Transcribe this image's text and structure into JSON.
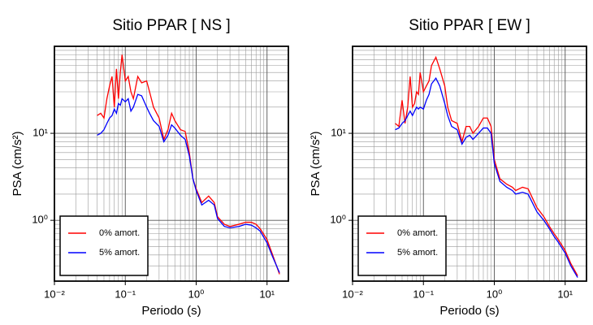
{
  "chart_data": [
    {
      "type": "line",
      "title": "Sitio PPAR [ NS ]",
      "x_label": "Periodo (s)",
      "y_label": "PSA (cm/s²)",
      "log_x": true,
      "log_y": true,
      "grid": true,
      "legend": "lower left",
      "xlim": [
        0.01,
        20
      ],
      "ylim": [
        0.2,
        100
      ],
      "xticks": [
        {
          "value": 0.01,
          "label": "10⁻²"
        },
        {
          "value": 0.1,
          "label": "10⁻¹"
        },
        {
          "value": 1,
          "label": "10⁰"
        },
        {
          "value": 10,
          "label": "10¹"
        }
      ],
      "yticks": [
        {
          "value": 1,
          "label": "10⁰"
        },
        {
          "value": 10,
          "label": "10¹"
        }
      ],
      "xminorticks": [
        0.02,
        0.03,
        0.04,
        0.05,
        0.06,
        0.07,
        0.08,
        0.09,
        0.2,
        0.3,
        0.4,
        0.5,
        0.6,
        0.7,
        0.8,
        0.9,
        2,
        3,
        4,
        5,
        6,
        7,
        8,
        9
      ],
      "yminorticks": [
        0.3,
        0.4,
        0.5,
        0.6,
        0.7,
        0.8,
        0.9,
        2,
        3,
        4,
        5,
        6,
        7,
        8,
        9,
        20,
        30,
        40,
        50,
        60,
        70,
        80,
        90
      ],
      "x": [
        0.04,
        0.045,
        0.05,
        0.055,
        0.06,
        0.065,
        0.07,
        0.075,
        0.08,
        0.085,
        0.09,
        0.1,
        0.11,
        0.12,
        0.13,
        0.15,
        0.17,
        0.2,
        0.22,
        0.25,
        0.3,
        0.35,
        0.4,
        0.45,
        0.5,
        0.6,
        0.7,
        0.8,
        0.9,
        1,
        1.2,
        1.5,
        1.8,
        2,
        2.5,
        3,
        4,
        5,
        6,
        7,
        8,
        10,
        12,
        15
      ],
      "series": [
        {
          "name": "0% amort.",
          "color": "#ff0000",
          "values": [
            16,
            17,
            15,
            25,
            35,
            45,
            20,
            55,
            25,
            50,
            80,
            40,
            45,
            30,
            25,
            45,
            38,
            40,
            30,
            20,
            15,
            8.5,
            11,
            17,
            14,
            11,
            10.5,
            6,
            3,
            2.3,
            1.6,
            1.9,
            1.6,
            1.1,
            0.9,
            0.85,
            0.9,
            0.95,
            0.95,
            0.9,
            0.8,
            0.6,
            0.4,
            0.24
          ]
        },
        {
          "name": "5% amort.",
          "color": "#0000ff",
          "values": [
            9.5,
            10,
            11,
            13,
            15,
            16,
            19,
            17,
            22,
            21,
            25,
            23,
            25,
            18,
            20,
            28,
            27,
            20,
            17,
            14,
            12,
            8,
            9.5,
            12.5,
            11.5,
            9.5,
            8.5,
            5.5,
            3,
            2.2,
            1.5,
            1.7,
            1.5,
            1.05,
            0.85,
            0.82,
            0.85,
            0.9,
            0.88,
            0.82,
            0.75,
            0.55,
            0.38,
            0.25
          ]
        }
      ]
    },
    {
      "type": "line",
      "title": "Sitio PPAR [ EW ]",
      "x_label": "Periodo (s)",
      "y_label": "PSA (cm/s²)",
      "log_x": true,
      "log_y": true,
      "grid": true,
      "legend": "lower left",
      "xlim": [
        0.01,
        20
      ],
      "ylim": [
        0.2,
        100
      ],
      "xticks": [
        {
          "value": 0.01,
          "label": "10⁻²"
        },
        {
          "value": 0.1,
          "label": "10⁻¹"
        },
        {
          "value": 1,
          "label": "10⁰"
        },
        {
          "value": 10,
          "label": "10¹"
        }
      ],
      "yticks": [
        {
          "value": 1,
          "label": "10⁰"
        },
        {
          "value": 10,
          "label": "10¹"
        }
      ],
      "xminorticks": [
        0.02,
        0.03,
        0.04,
        0.05,
        0.06,
        0.07,
        0.08,
        0.09,
        0.2,
        0.3,
        0.4,
        0.5,
        0.6,
        0.7,
        0.8,
        0.9,
        2,
        3,
        4,
        5,
        6,
        7,
        8,
        9
      ],
      "yminorticks": [
        0.3,
        0.4,
        0.5,
        0.6,
        0.7,
        0.8,
        0.9,
        2,
        3,
        4,
        5,
        6,
        7,
        8,
        9,
        20,
        30,
        40,
        50,
        60,
        70,
        80,
        90
      ],
      "x": [
        0.04,
        0.045,
        0.05,
        0.055,
        0.06,
        0.065,
        0.07,
        0.075,
        0.08,
        0.085,
        0.09,
        0.1,
        0.11,
        0.12,
        0.13,
        0.15,
        0.17,
        0.2,
        0.22,
        0.25,
        0.3,
        0.35,
        0.4,
        0.45,
        0.5,
        0.6,
        0.7,
        0.8,
        0.9,
        1,
        1.2,
        1.5,
        1.8,
        2,
        2.5,
        3,
        4,
        5,
        6,
        7,
        8,
        10,
        12,
        15
      ],
      "series": [
        {
          "name": "0% amort.",
          "color": "#ff0000",
          "values": [
            13,
            12,
            24,
            13,
            20,
            45,
            20,
            22,
            30,
            28,
            50,
            30,
            35,
            40,
            60,
            75,
            55,
            35,
            20,
            14,
            13,
            8,
            12,
            12,
            10,
            12,
            15,
            15,
            12,
            5,
            3,
            2.6,
            2.4,
            2.2,
            2.4,
            2.3,
            1.4,
            1.1,
            0.85,
            0.7,
            0.6,
            0.45,
            0.32,
            0.23
          ]
        },
        {
          "name": "5% amort.",
          "color": "#0000ff",
          "values": [
            11,
            11.5,
            13,
            14,
            16,
            18,
            16,
            18,
            20,
            19,
            20,
            19,
            24,
            28,
            37,
            43,
            35,
            22,
            16,
            12,
            11,
            7.5,
            9,
            9.5,
            8.5,
            10,
            11.5,
            11.5,
            10,
            4.5,
            2.8,
            2.4,
            2.2,
            2,
            2.1,
            2,
            1.25,
            1,
            0.8,
            0.65,
            0.56,
            0.42,
            0.3,
            0.22
          ]
        }
      ]
    }
  ]
}
